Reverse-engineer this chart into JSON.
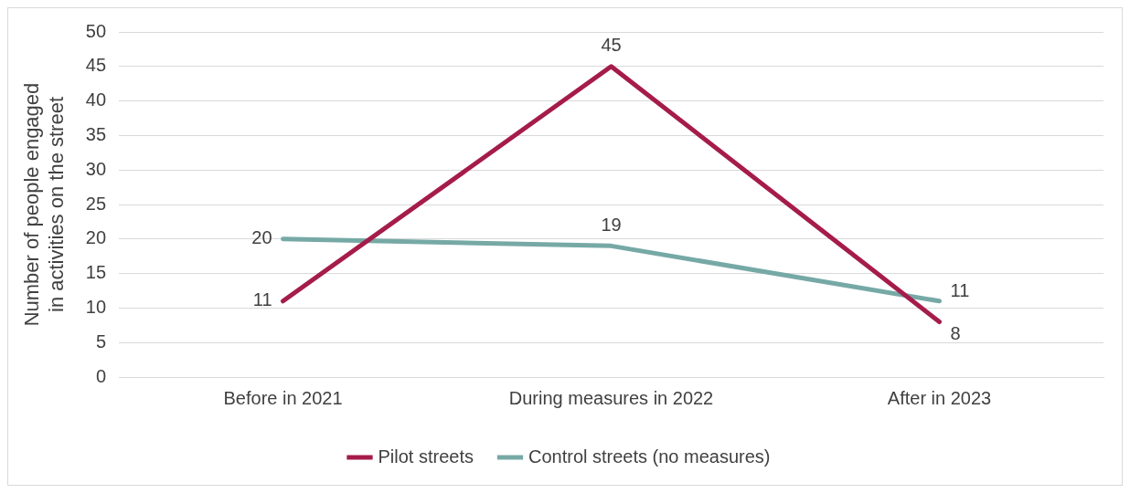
{
  "chart_data": {
    "type": "line",
    "categories": [
      "Before in 2021",
      "During measures in 2022",
      "After in 2023"
    ],
    "ylabel": "Number of people engaged in activities on the street",
    "series": [
      {
        "name": "Pilot streets",
        "color": "#a51c4b",
        "values": [
          11,
          45,
          8
        ]
      },
      {
        "name": "Control streets (no measures)",
        "color": "#76a9a6",
        "values": [
          20,
          19,
          11
        ]
      }
    ],
    "ylim": [
      0,
      50
    ],
    "yticks": [
      0,
      5,
      10,
      15,
      20,
      25,
      30,
      35,
      40,
      45,
      50
    ],
    "grid": "y",
    "legend": "bottom",
    "data_labels": true,
    "marker": "none",
    "line_style": "solid"
  }
}
